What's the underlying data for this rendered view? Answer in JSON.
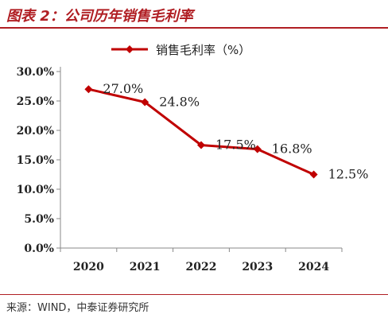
{
  "header": {
    "title": "图表 2：公司历年销售毛利率"
  },
  "footer": {
    "source": "来源：WIND，中泰证券研究所"
  },
  "colors": {
    "accent": "#b01e23",
    "series": "#c00000",
    "axis": "#888888"
  },
  "chart_data": {
    "type": "line",
    "categories": [
      "2020",
      "2021",
      "2022",
      "2023",
      "2024"
    ],
    "series": [
      {
        "name": "销售毛利率（%）",
        "values": [
          27.0,
          24.8,
          17.5,
          16.8,
          12.5
        ],
        "labels": [
          "27.0%",
          "24.8%",
          "17.5%",
          "16.8%",
          "12.5%"
        ],
        "marker": "diamond"
      }
    ],
    "y_ticks": [
      "0.0%",
      "5.0%",
      "10.0%",
      "15.0%",
      "20.0%",
      "25.0%",
      "30.0%"
    ],
    "ylim": [
      0,
      30
    ],
    "grid": false,
    "legend_position": "top-center",
    "xlabel": "",
    "ylabel": ""
  }
}
